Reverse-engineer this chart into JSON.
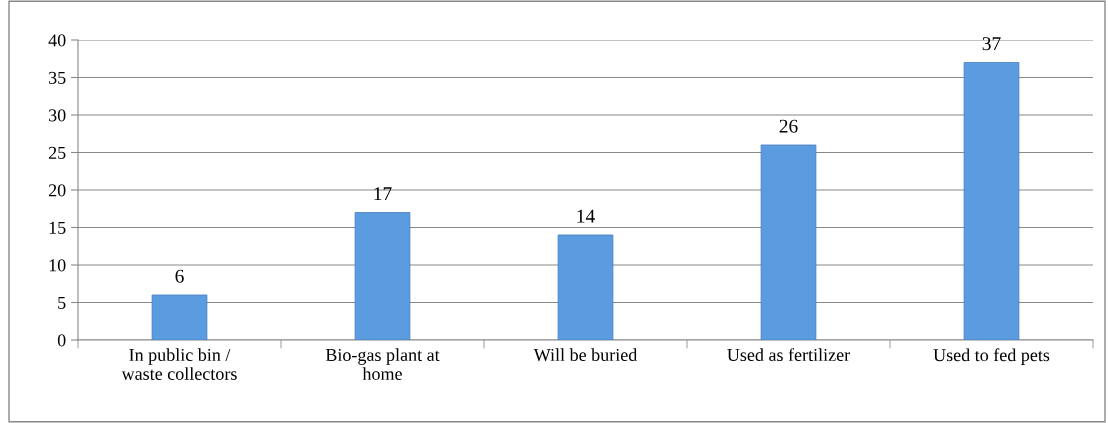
{
  "chart_data": {
    "type": "bar",
    "categories": [
      "In public bin /\nwaste collectors",
      "Bio-gas plant at\nhome",
      "Will be buried",
      "Used as fertilizer",
      "Used to fed pets"
    ],
    "values": [
      6,
      17,
      14,
      26,
      37
    ],
    "color": "#5b9be0",
    "ylim": [
      0,
      40
    ],
    "yticks": [
      0,
      5,
      10,
      15,
      20,
      25,
      30,
      35,
      40
    ],
    "grid": "y",
    "data_labels": true
  }
}
